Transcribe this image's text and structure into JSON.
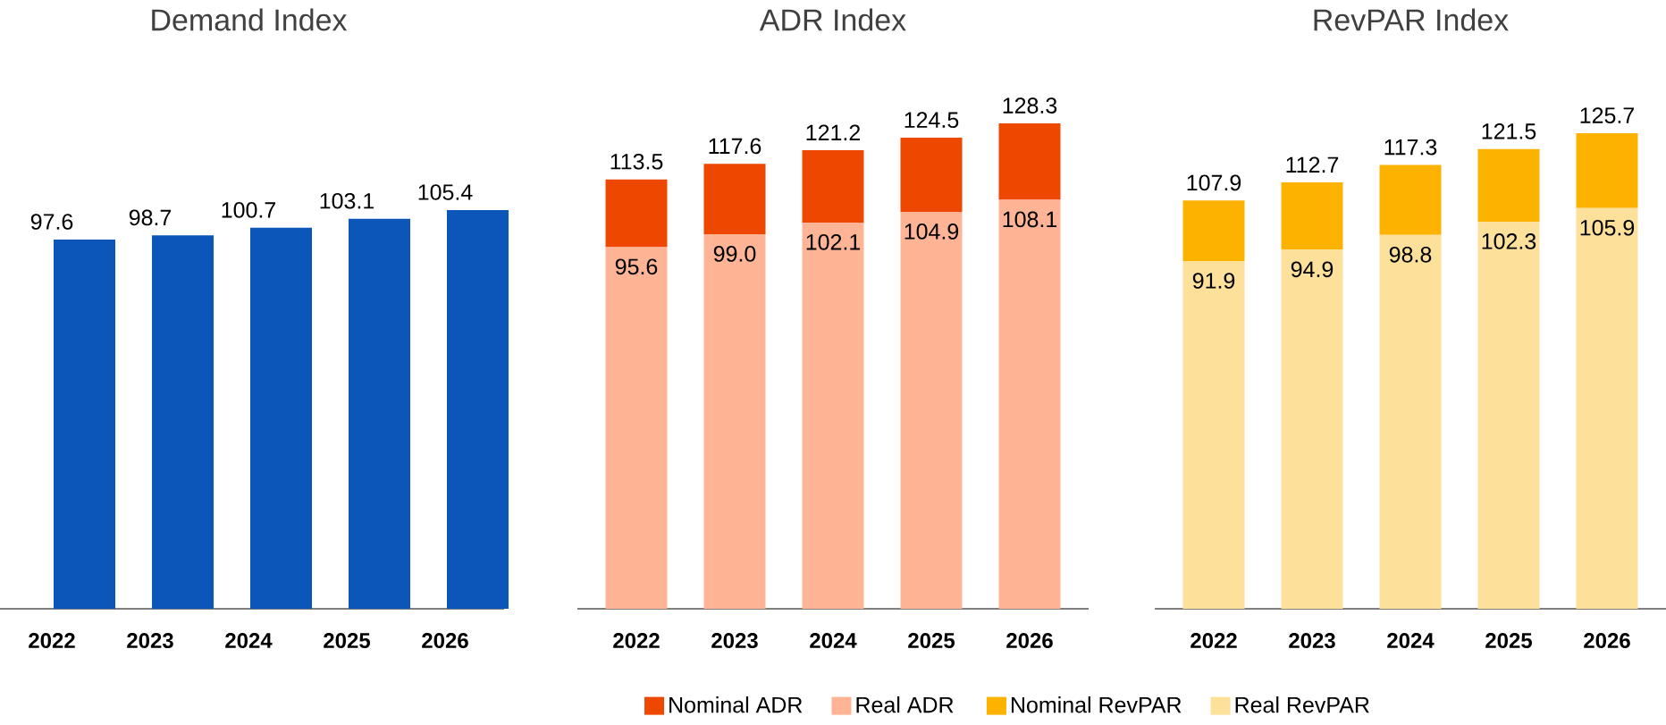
{
  "chart_data": [
    {
      "type": "bar",
      "title": "Demand Index",
      "categories": [
        "2022",
        "2023",
        "2024",
        "2025",
        "2026"
      ],
      "tick_labels": "x",
      "series": [
        {
          "color": "#0b56b8",
          "values": [
            97.6,
            98.7,
            100.7,
            103.1,
            105.4
          ],
          "value_labels": [
            "97.6",
            "98.7",
            "100.7",
            "103.1",
            "105.4"
          ]
        }
      ]
    },
    {
      "type": "bar",
      "title": "ADR Index",
      "categories": [
        "2022",
        "2023",
        "2024",
        "2025",
        "2026"
      ],
      "tick_labels": "x",
      "legend": "bottom",
      "stacked": true,
      "totals": [
        "113.5",
        "117.6",
        "121.2",
        "124.5",
        "128.3"
      ],
      "series": [
        {
          "name": "Real ADR",
          "color": "#ffb595",
          "values": [
            95.6,
            99.0,
            102.1,
            104.9,
            108.1
          ],
          "value_labels": [
            "95.6",
            "99.0",
            "102.1",
            "104.9",
            "108.1"
          ]
        },
        {
          "name": "Nominal ADR",
          "color": "#ee4700",
          "values": [
            17.9,
            18.6,
            19.1,
            19.6,
            20.2
          ]
        }
      ]
    },
    {
      "type": "bar",
      "title": "RevPAR Index",
      "categories": [
        "2022",
        "2023",
        "2024",
        "2025",
        "2026"
      ],
      "tick_labels": "x",
      "legend": "bottom",
      "stacked": true,
      "totals": [
        "107.9",
        "112.7",
        "117.3",
        "121.5",
        "125.7"
      ],
      "series": [
        {
          "name": "Real RevPAR",
          "color": "#fde09a",
          "values": [
            91.9,
            94.9,
            98.8,
            102.3,
            105.9
          ],
          "value_labels": [
            "91.9",
            "94.9",
            "98.8",
            "102.3",
            "105.9"
          ]
        },
        {
          "name": "Nominal RevPAR",
          "color": "#fdb200",
          "values": [
            16.0,
            17.8,
            18.5,
            19.2,
            19.8
          ]
        }
      ]
    }
  ]
}
